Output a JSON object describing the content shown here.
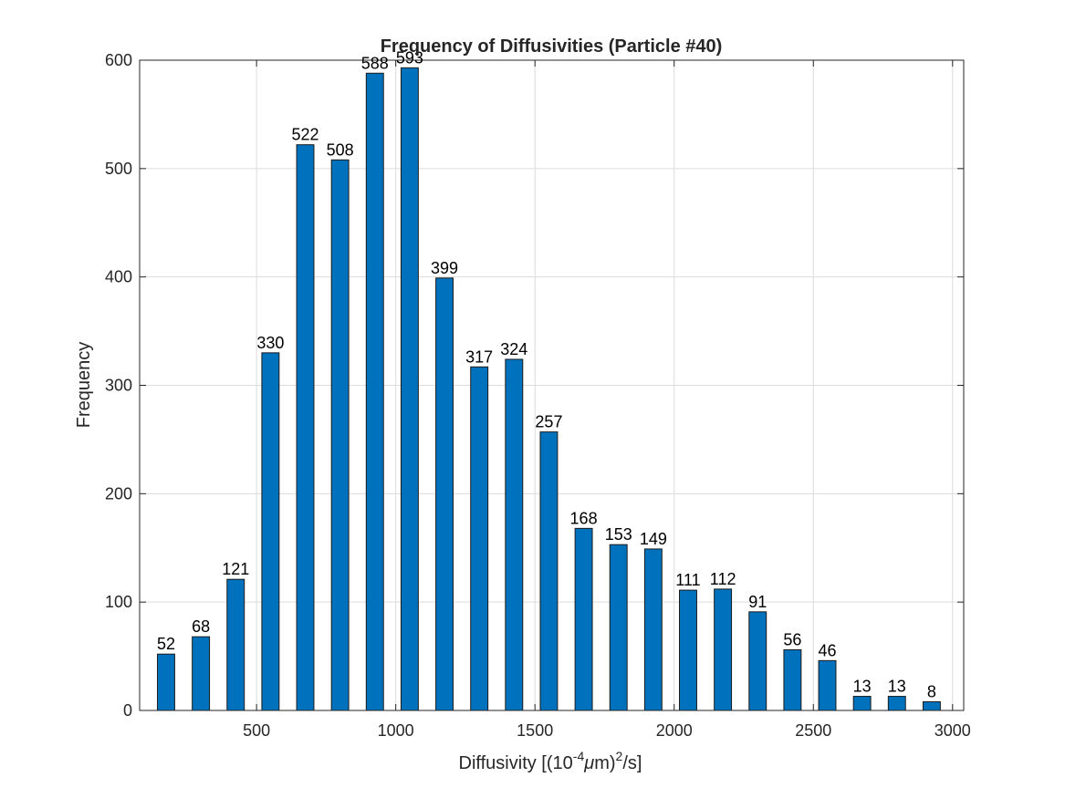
{
  "chart_data": {
    "type": "bar",
    "title": "Frequency of Diffusivities (Particle #40)",
    "xlabel": {
      "prefix": "Diffusivity [(10",
      "exp1": "-4",
      "mu": "μ",
      "mid": "m)",
      "exp2": "2",
      "suffix": "/s]"
    },
    "ylabel": "Frequency",
    "x": [
      175,
      300,
      425,
      550,
      675,
      800,
      925,
      1050,
      1175,
      1300,
      1425,
      1550,
      1675,
      1800,
      1925,
      2050,
      2175,
      2300,
      2425,
      2550,
      2675,
      2800,
      2925
    ],
    "values": [
      52,
      68,
      121,
      330,
      522,
      508,
      588,
      593,
      399,
      317,
      324,
      257,
      168,
      153,
      149,
      111,
      112,
      91,
      56,
      46,
      13,
      13,
      8
    ],
    "bar_width": 62,
    "xlim": [
      80,
      3040
    ],
    "ylim": [
      0,
      600
    ],
    "xticks": [
      500,
      1000,
      1500,
      2000,
      2500,
      3000
    ],
    "yticks": [
      0,
      100,
      200,
      300,
      400,
      500,
      600
    ],
    "grid": true,
    "bar_color": "#0072bd"
  }
}
